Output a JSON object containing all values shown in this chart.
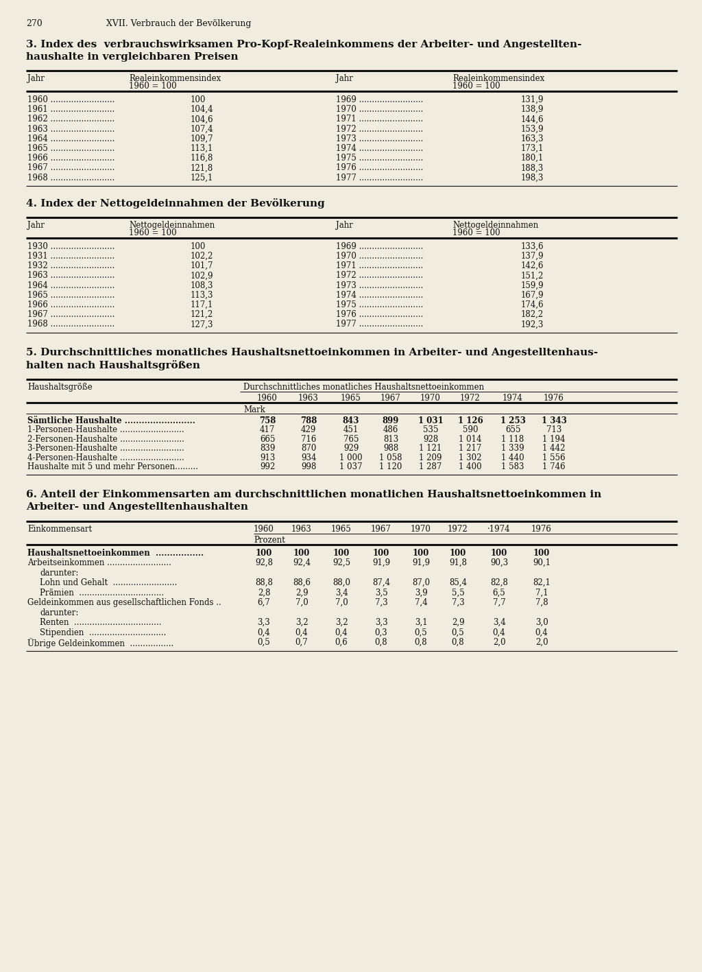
{
  "page_number": "270",
  "chapter_header": "XVII. Verbrauch der Bevölkerung",
  "bg_color": "#f0ece0",
  "text_color": "#1a1a1a",
  "section3_title_line1": "3. Index des  verbrauchswirksamen Pro-Kopf-Realeinkommens der Arbeiter- und Angestellten-",
  "section3_title_line2": "haushalte in vergleichbaren Preisen",
  "section3_left_years": [
    "1960",
    "1961",
    "1962",
    "1963",
    "1964",
    "1965",
    "1966",
    "1967",
    "1968"
  ],
  "section3_left_values": [
    "100",
    "104,4",
    "104,6",
    "107,4",
    "109,7",
    "113,1",
    "116,8",
    "121,8",
    "125,1"
  ],
  "section3_right_years": [
    "1969",
    "1970",
    "1971",
    "1972",
    "1973",
    "1974",
    "1975",
    "1976",
    "1977"
  ],
  "section3_right_values": [
    "131,9",
    "138,9",
    "144,6",
    "153,9",
    "163,3",
    "173,1",
    "180,1",
    "188,3",
    "198,3"
  ],
  "section4_title": "4. Index der Nettogeldeinnahmen der Bevölkerung",
  "section4_left_years": [
    "1930",
    "1931",
    "1932",
    "1963",
    "1964",
    "1965",
    "1966",
    "1967",
    "1968"
  ],
  "section4_left_values": [
    "100",
    "102,2",
    "101,7",
    "102,9",
    "108,3",
    "113,3",
    "117,1",
    "121,2",
    "127,3"
  ],
  "section4_right_years": [
    "1969",
    "1970",
    "1971",
    "1972",
    "1973",
    "1974",
    "1975",
    "1976",
    "1977"
  ],
  "section4_right_values": [
    "133,6",
    "137,9",
    "142,6",
    "151,2",
    "159,9",
    "167,9",
    "174,6",
    "182,2",
    "192,3"
  ],
  "section5_title_line1": "5. Durchschnittliches monatliches Haushaltsnettoeinkommen in Arbeiter- und Angestelltenhaus-",
  "section5_title_line2": "halten nach Haushaltsgrößen",
  "section5_years": [
    "1960",
    "1963",
    "1965",
    "1967",
    "1970",
    "1972",
    "1974",
    "1976"
  ],
  "section5_rows": [
    {
      "label": "Sämtliche Haushalte .........................",
      "bold": true,
      "values": [
        "758",
        "788",
        "843",
        "899",
        "1 031",
        "1 126",
        "1 253",
        "1 343"
      ]
    },
    {
      "label": "1-Personen-Haushalte .........................",
      "bold": false,
      "values": [
        "417",
        "429",
        "451",
        "486",
        "535",
        "590",
        "655",
        "713"
      ]
    },
    {
      "label": "2-Fersonen-Haushalte .........................",
      "bold": false,
      "values": [
        "665",
        "716",
        "765",
        "813",
        "928",
        "1 014",
        "1 118",
        "1 194"
      ]
    },
    {
      "label": "3-Personen-Haushalte .........................",
      "bold": false,
      "values": [
        "839",
        "870",
        "929",
        "988",
        "1 121",
        "1 217",
        "1 339",
        "1 442"
      ]
    },
    {
      "label": "4-Personen-Haushalte .........................",
      "bold": false,
      "values": [
        "913",
        "934",
        "1 000",
        "1 058",
        "1 209",
        "1 302",
        "1 440",
        "1 556"
      ]
    },
    {
      "label": "Haushalte mit 5 und mehr Personen.........",
      "bold": false,
      "values": [
        "992",
        "998",
        "1 037",
        "1 120",
        "1 287",
        "1 400",
        "1 583",
        "1 746"
      ]
    }
  ],
  "section6_title_line1": "6. Anteil der Einkommensarten am durchschnittlichen monatlichen Haushaltsnettoeinkommen in",
  "section6_title_line2": "Arbeiter- und Angestelltenhaushalten",
  "section6_years": [
    "1960",
    "1963",
    "1965",
    "1967",
    "1970",
    "1972",
    "·1974",
    "1976"
  ],
  "section6_rows": [
    {
      "label": "Haushaltsnettoeinkommen  .................",
      "bold": true,
      "sub": false,
      "values": [
        "100",
        "100",
        "100",
        "100",
        "100",
        "100",
        "100",
        "100"
      ]
    },
    {
      "label": "Arbeitseinkommen .........................",
      "bold": false,
      "sub": false,
      "values": [
        "92,8",
        "92,4",
        "92,5",
        "91,9",
        "91,9",
        "91,8",
        "90,3",
        "90,1"
      ]
    },
    {
      "label": "darunter:",
      "bold": false,
      "sub": true,
      "values": []
    },
    {
      "label": "Lohn und Gehalt  .........................",
      "bold": false,
      "sub": true,
      "values": [
        "88,8",
        "88,6",
        "88,0",
        "87,4",
        "87,0",
        "85,4",
        "82,8",
        "82,1"
      ]
    },
    {
      "label": "Prämien  .................................",
      "bold": false,
      "sub": true,
      "values": [
        "2,8",
        "2,9",
        "3,4",
        "3,5",
        "3,9",
        "5,5",
        "6,5",
        "7,1"
      ]
    },
    {
      "label": "Geldeinkommen aus gesellschaftlichen Fonds ..",
      "bold": false,
      "sub": false,
      "values": [
        "6,7",
        "7,0",
        "7,0",
        "7,3",
        "7,4",
        "7,3",
        "7,7",
        "7,8"
      ]
    },
    {
      "label": "darunter:",
      "bold": false,
      "sub": true,
      "values": []
    },
    {
      "label": "Renten  ..................................",
      "bold": false,
      "sub": true,
      "values": [
        "3,3",
        "3,2",
        "3,2",
        "3,3",
        "3,1",
        "2,9",
        "3,4",
        "3,0"
      ]
    },
    {
      "label": "Stipendien  ..............................",
      "bold": false,
      "sub": true,
      "values": [
        "0,4",
        "0,4",
        "0,4",
        "0,3",
        "0,5",
        "0,5",
        "0,4",
        "0,4"
      ]
    },
    {
      "label": "Übrige Geldeinkommen  .................",
      "bold": false,
      "sub": false,
      "values": [
        "0,5",
        "0,7",
        "0,6",
        "0,8",
        "0,8",
        "0,8",
        "2,0",
        "2,0"
      ]
    }
  ]
}
